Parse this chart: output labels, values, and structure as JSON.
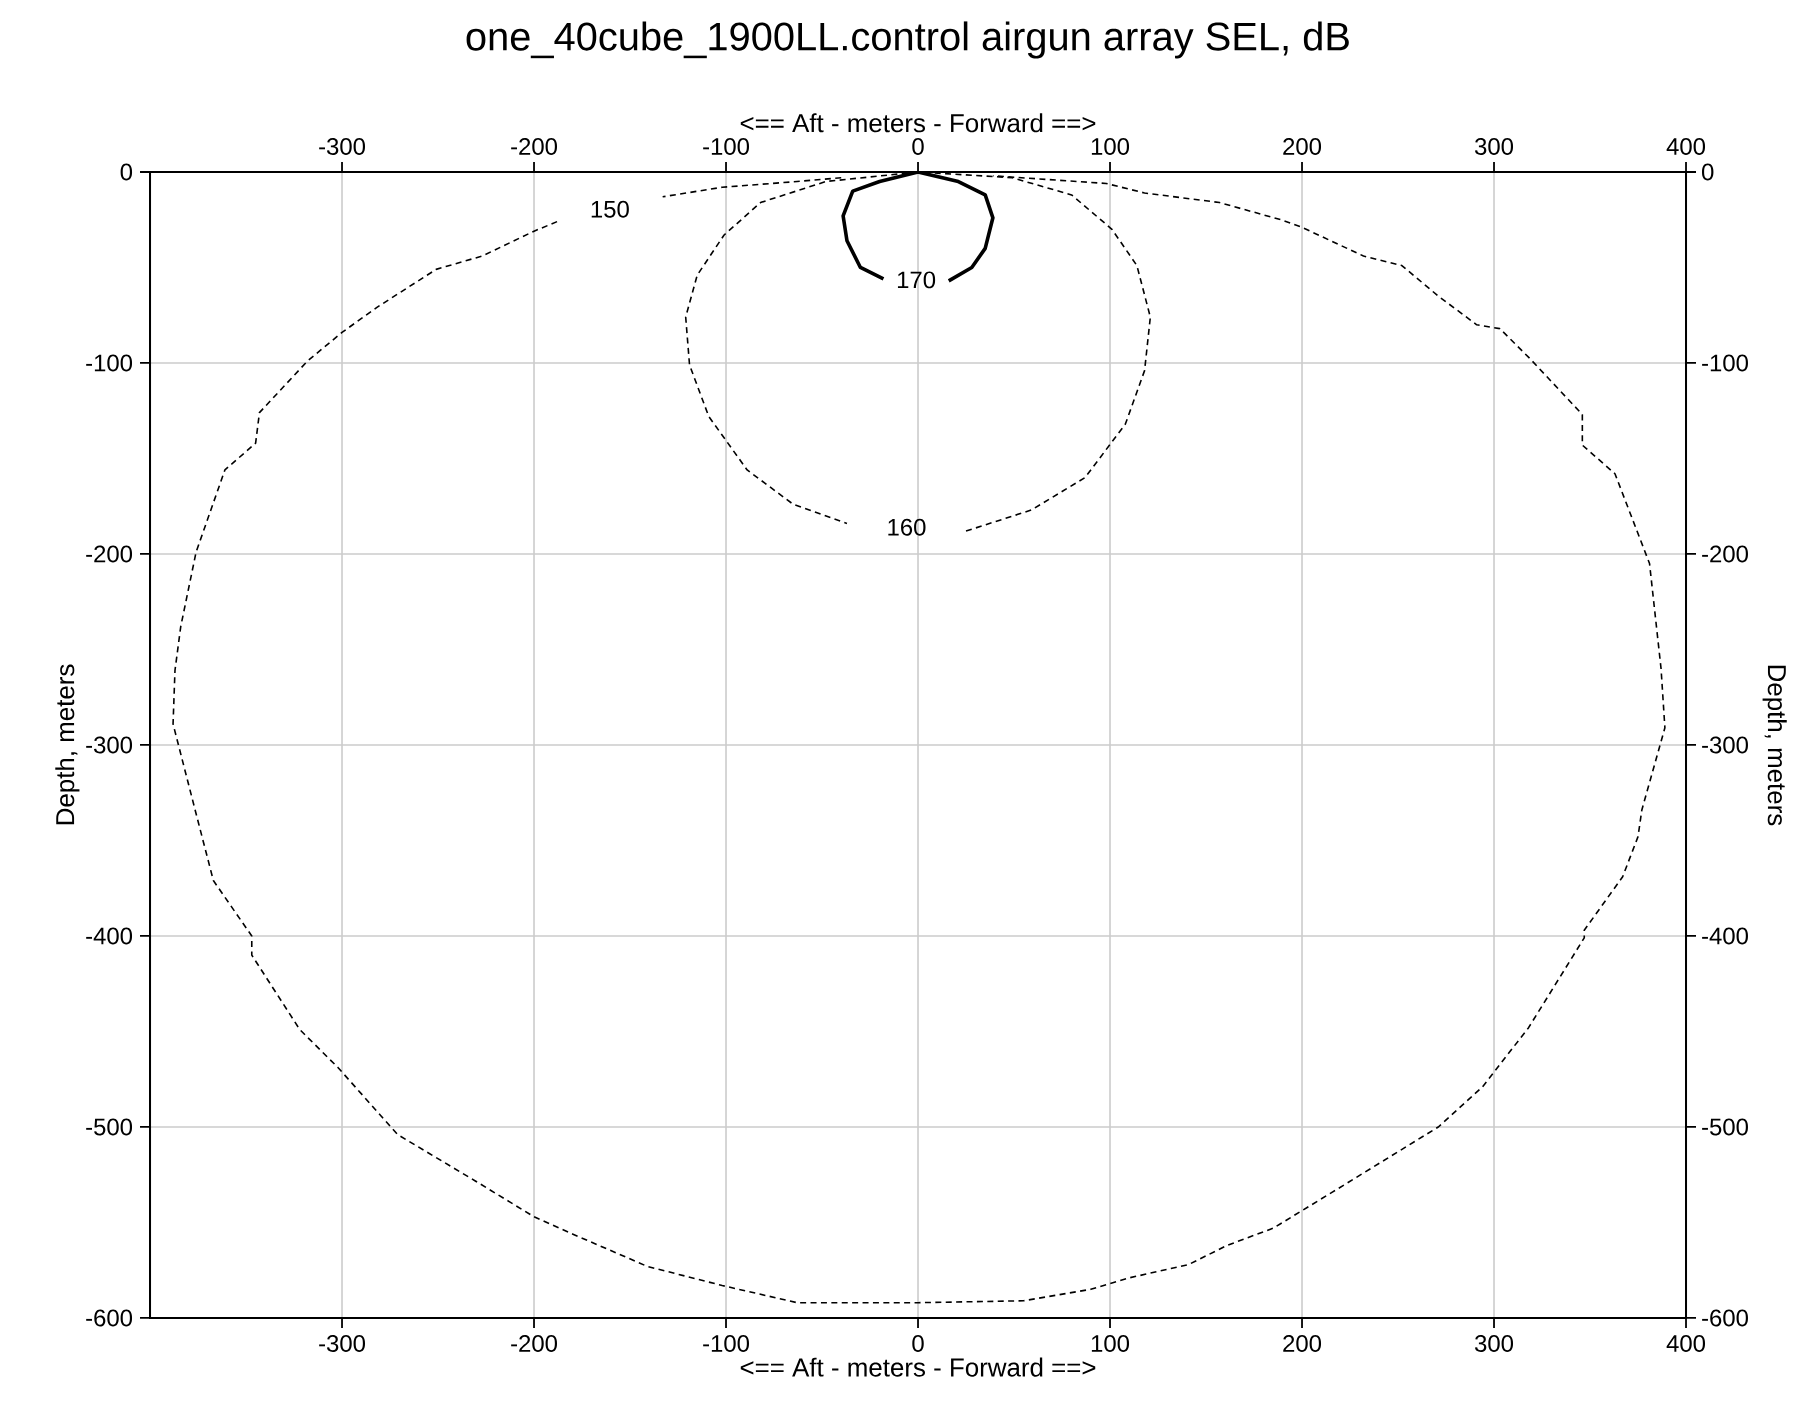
{
  "chart_data": {
    "type": "line",
    "title": "one_40cube_1900LL.control airgun array SEL, dB",
    "xlabel": "<==   Aft   - meters -  Forward  ==>",
    "x2label": "<==   Aft   - meters -  Forward  ==>",
    "ylabel": "Depth, meters",
    "y2label": "Depth, meters",
    "xlim": [
      -400,
      400
    ],
    "xticks": [
      -300,
      -200,
      -100,
      0,
      100,
      200,
      300,
      400
    ],
    "x2lim": [
      -400,
      400
    ],
    "x2ticks": [
      -300,
      -200,
      -100,
      0,
      100,
      200,
      300,
      400
    ],
    "ylim": [
      -600,
      0
    ],
    "yticks": [
      -600,
      -500,
      -400,
      -300,
      -200,
      -100,
      0
    ],
    "y2lim": [
      -600,
      0
    ],
    "y2ticks": [
      -600,
      -500,
      -400,
      -300,
      -200,
      -100,
      0
    ],
    "grid": true,
    "series": [
      {
        "name": "150",
        "color": "#000000",
        "line_style": "dashed",
        "x": [
          -40,
          -63,
          -102,
          -133,
          -162,
          -188,
          -200,
          -227,
          -251,
          -282,
          -300,
          -318,
          -343,
          -345,
          -361,
          -376,
          -384,
          -387,
          -388,
          -376,
          -367,
          -347,
          -347,
          -322,
          -302,
          -271,
          -231,
          -200,
          -180,
          -141,
          -102,
          -63,
          0,
          55,
          90,
          110,
          141,
          161,
          185,
          216,
          271,
          294,
          318,
          347,
          347,
          367,
          375,
          377,
          389,
          387,
          381,
          363,
          346,
          346,
          319,
          303,
          291,
          271,
          252,
          232,
          200,
          189,
          157,
          118,
          98,
          39
        ],
        "values": [
          -3,
          -5,
          -8,
          -13,
          null,
          -26,
          -31,
          -44,
          -51,
          -71,
          -84,
          -99,
          -126,
          -142,
          -156,
          -199,
          -238,
          -261,
          -289,
          -336,
          -371,
          -400,
          -410,
          -449,
          -469,
          -504,
          -528,
          -547,
          -556,
          -573,
          -583,
          -592,
          -592,
          -591,
          -585,
          -579,
          -572,
          -562,
          -553,
          -534,
          -500,
          -479,
          -448,
          -401,
          -397,
          -369,
          -348,
          -334,
          -291,
          -260,
          -205,
          -158,
          -143,
          -127,
          -98,
          -82,
          -80,
          -65,
          -49,
          -44,
          -29,
          -25,
          -16,
          -11,
          -6,
          -2
        ]
      },
      {
        "name": "160",
        "color": "#000000",
        "line_style": "dashed",
        "x": [
          0,
          -48,
          -82,
          -101,
          -115,
          -121,
          -119,
          -109,
          -89,
          -65,
          -37,
          0,
          25,
          59,
          87,
          108,
          118,
          121,
          114,
          101,
          80,
          49,
          0
        ],
        "values": [
          0,
          -5,
          -16,
          -33,
          -54,
          -76,
          -101,
          -128,
          -156,
          -174,
          -184,
          null,
          -188,
          -177,
          -160,
          -132,
          -104,
          -76,
          -49,
          -30,
          -12,
          -3,
          0
        ]
      },
      {
        "name": "170",
        "color": "#000000",
        "line_style": "solid",
        "x": [
          -18,
          -30,
          -37,
          -39,
          -34,
          -20,
          0,
          21,
          35,
          39,
          35,
          28,
          16
        ],
        "values": [
          -56,
          -50,
          -36,
          -23,
          -10,
          -5,
          0,
          -5,
          -12,
          -24,
          -40,
          -50,
          -57
        ]
      }
    ]
  }
}
